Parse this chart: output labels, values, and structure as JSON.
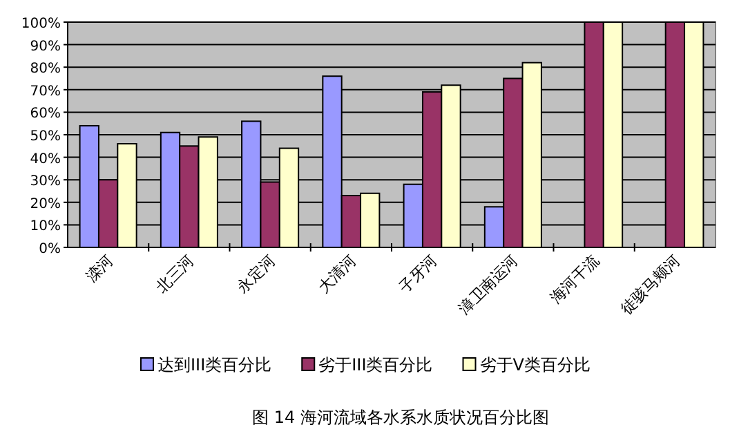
{
  "chart_data": {
    "type": "bar",
    "title": "图 14   海河流域各水系水质状况百分比图",
    "categories": [
      "滦河",
      "北三河",
      "永定河",
      "大清河",
      "子牙河",
      "漳卫南运河",
      "海河干流",
      "徒骇马颊河"
    ],
    "series": [
      {
        "name": "达到III类百分比",
        "color": "#9999ff",
        "values": [
          54,
          51,
          56,
          76,
          28,
          18,
          0,
          0
        ]
      },
      {
        "name": "劣于III类百分比",
        "color": "#993366",
        "values": [
          30,
          45,
          29,
          23,
          69,
          75,
          100,
          100
        ]
      },
      {
        "name": "劣于V类百分比",
        "color": "#ffffcc",
        "values": [
          46,
          49,
          44,
          24,
          72,
          82,
          100,
          100
        ]
      }
    ],
    "ylim": [
      0,
      100
    ],
    "yticks": [
      {
        "value": 0,
        "label": "0%"
      },
      {
        "value": 10,
        "label": "10%"
      },
      {
        "value": 20,
        "label": "20%"
      },
      {
        "value": 30,
        "label": "30%"
      },
      {
        "value": 40,
        "label": "40%"
      },
      {
        "value": 50,
        "label": "50%"
      },
      {
        "value": 60,
        "label": "60%"
      },
      {
        "value": 70,
        "label": "70%"
      },
      {
        "value": 80,
        "label": "80%"
      },
      {
        "value": 90,
        "label": "90%"
      },
      {
        "value": 100,
        "label": "100%"
      }
    ],
    "grid": "y",
    "legend": "bottom"
  }
}
